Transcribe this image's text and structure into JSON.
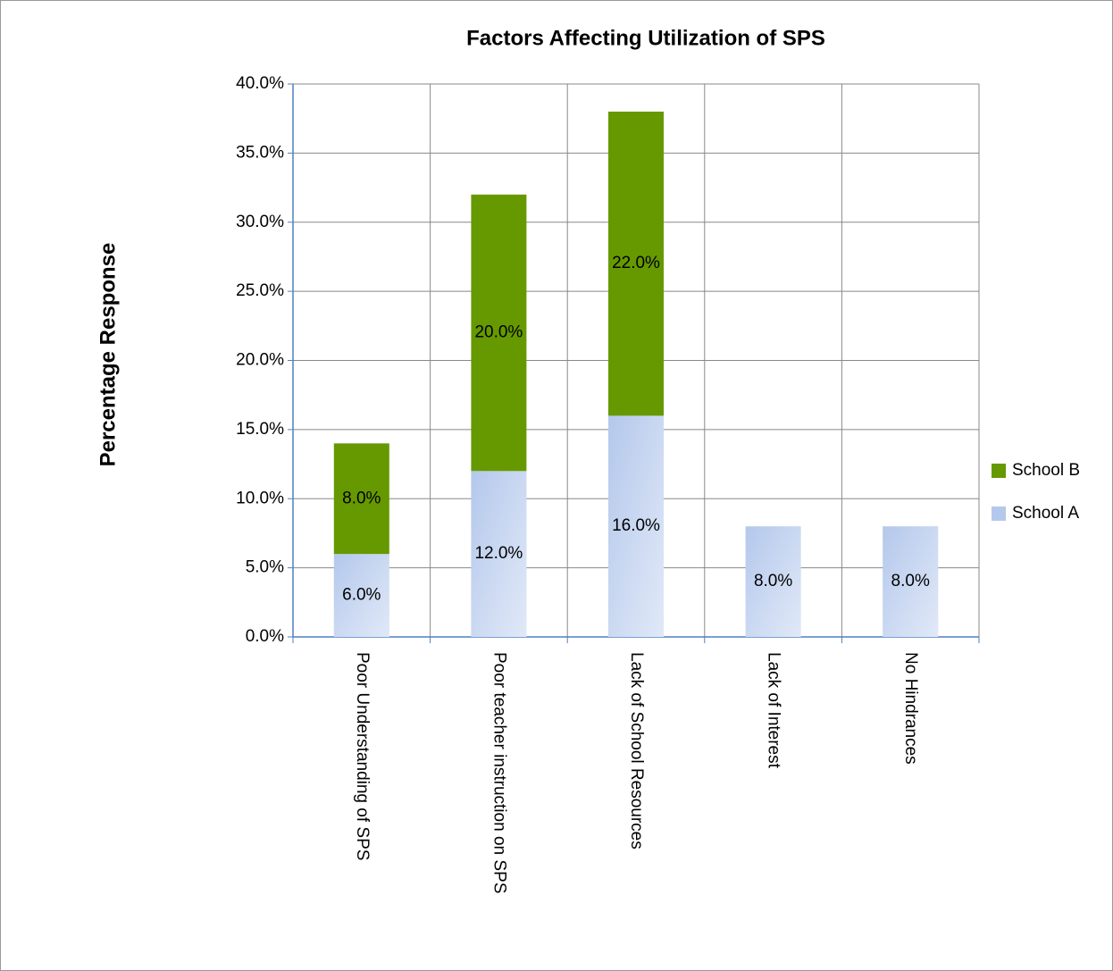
{
  "chart_data": {
    "type": "stacked_bar",
    "title": "Factors Affecting Utilization of SPS",
    "y_axis_label": "Percentage Response",
    "categories": [
      "Poor Understanding of SPS",
      "Poor teacher instruction on SPS",
      "Lack of School Resources",
      "Lack of Interest",
      "No Hindrances"
    ],
    "series": [
      {
        "name": "School A",
        "color": "#b4c8ec",
        "values": [
          6,
          12,
          16,
          8,
          8
        ],
        "value_labels": [
          "6.0%",
          "12.0%",
          "16.0%",
          "8.0%",
          "8.0%"
        ]
      },
      {
        "name": "School B",
        "color": "#669900",
        "values": [
          8,
          20,
          22,
          null,
          null
        ],
        "value_labels": [
          "8.0%",
          "20.0%",
          "22.0%",
          null,
          null
        ]
      }
    ],
    "ylim": [
      0,
      40
    ],
    "yticks": [
      {
        "value": 0,
        "label": "0.0%"
      },
      {
        "value": 5,
        "label": "5.0%"
      },
      {
        "value": 10,
        "label": "10.0%"
      },
      {
        "value": 15,
        "label": "15.0%"
      },
      {
        "value": 20,
        "label": "20.0%"
      },
      {
        "value": 25,
        "label": "25.0%"
      },
      {
        "value": 30,
        "label": "30.0%"
      },
      {
        "value": 35,
        "label": "35.0%"
      },
      {
        "value": 40,
        "label": "40.0%"
      }
    ],
    "grid": true,
    "legend": "right"
  }
}
